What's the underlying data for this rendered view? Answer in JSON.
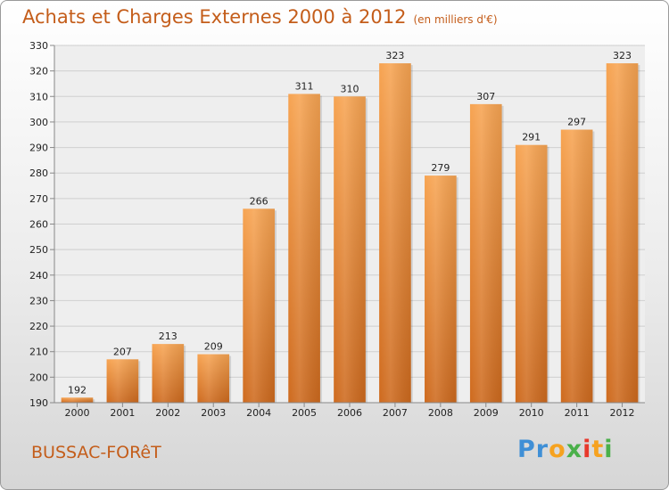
{
  "chart_data": {
    "type": "bar",
    "title": "Achats et Charges Externes 2000 à 2012",
    "subtitle": "(en milliers d'€)",
    "xlabel": "",
    "ylabel": "",
    "categories": [
      "2000",
      "2001",
      "2002",
      "2003",
      "2004",
      "2005",
      "2006",
      "2007",
      "2008",
      "2009",
      "2010",
      "2011",
      "2012"
    ],
    "values": [
      192,
      207,
      213,
      209,
      266,
      311,
      310,
      323,
      279,
      307,
      291,
      297,
      323
    ],
    "ylim": [
      190,
      330
    ],
    "yticks": [
      190,
      200,
      210,
      220,
      230,
      240,
      250,
      260,
      270,
      280,
      290,
      300,
      310,
      320,
      330
    ],
    "grid": true,
    "legend": "none",
    "bar_color": "#f0923e"
  },
  "commune": "BUSSAC-FORêT",
  "logo": {
    "letters": [
      "P",
      "r",
      "o",
      "x",
      "i",
      "t",
      "i"
    ],
    "colors": [
      "#3f8fd6",
      "#3f8fd6",
      "#f6a21f",
      "#4ab04a",
      "#e8392c",
      "#f6a21f",
      "#4ab04a"
    ]
  }
}
